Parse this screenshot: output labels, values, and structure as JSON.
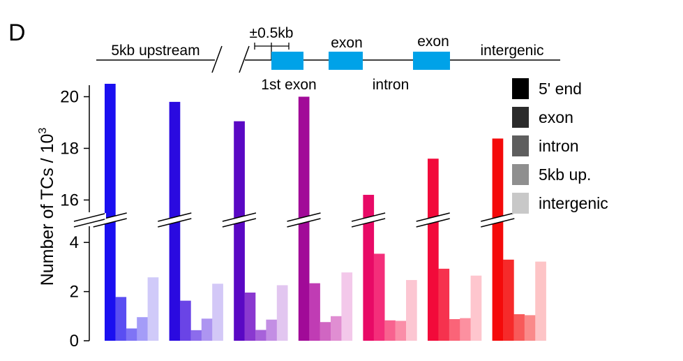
{
  "panel_label": "D",
  "gene_diagram": {
    "labels": {
      "upstream": "5kb upstream",
      "tss_window": "±0.5kb",
      "exon_a": "exon",
      "exon_b": "exon",
      "intergenic": "intergenic",
      "first_exon": "1st exon",
      "intron": "intron"
    },
    "exon_color": "#00a2e8"
  },
  "chart_data": {
    "type": "bar",
    "ylabel": "Number of TCs / 10",
    "ylabel_superscript": "3",
    "axis_break": true,
    "y_segments": [
      {
        "range": [
          0,
          5
        ],
        "ticks": [
          "0",
          "2",
          "4"
        ]
      },
      {
        "range": [
          15.2,
          20.5
        ],
        "ticks": [
          "16",
          "18",
          "20"
        ]
      }
    ],
    "series_order": [
      "5' end",
      "exon",
      "intron",
      "5kb up.",
      "intergenic"
    ],
    "legend": {
      "placement": "top-right",
      "entries": [
        {
          "label": "5' end",
          "color": "#000000"
        },
        {
          "label": "exon",
          "color": "#2b2b2b"
        },
        {
          "label": "intron",
          "color": "#5e5e5e"
        },
        {
          "label": "5kb up.",
          "color": "#8f8f8f"
        },
        {
          "label": "intergenic",
          "color": "#c8c8c8"
        }
      ]
    },
    "groups": [
      {
        "values": [
          20.5,
          1.78,
          0.5,
          0.96,
          2.58
        ],
        "colors": [
          "#1a0ff0",
          "#5a4ef2",
          "#7f74f5",
          "#a49cf8",
          "#d0caf9"
        ]
      },
      {
        "values": [
          19.8,
          1.63,
          0.43,
          0.9,
          2.32
        ],
        "colors": [
          "#2a0ae0",
          "#6a44e6",
          "#8c6cec",
          "#ad95f1",
          "#d3c8f7"
        ]
      },
      {
        "values": [
          19.05,
          1.96,
          0.44,
          0.86,
          2.26
        ],
        "colors": [
          "#5a08c4",
          "#8a38d0",
          "#a762da",
          "#c38ee4",
          "#e2c6f0"
        ]
      },
      {
        "values": [
          20.0,
          2.34,
          0.76,
          1.0,
          2.78
        ],
        "colors": [
          "#a10a98",
          "#c03cb4",
          "#d066c2",
          "#e08ed2",
          "#f3c8ea"
        ]
      },
      {
        "values": [
          16.2,
          3.54,
          0.83,
          0.81,
          2.47
        ],
        "colors": [
          "#e80a66",
          "#f42e7a",
          "#f8628f",
          "#fa8ea8",
          "#fcc6d2"
        ]
      },
      {
        "values": [
          17.6,
          2.93,
          0.88,
          0.92,
          2.65
        ],
        "colors": [
          "#f20a3a",
          "#f6324e",
          "#fa6478",
          "#fc90a0",
          "#fec6ce"
        ]
      },
      {
        "values": [
          18.38,
          3.3,
          1.08,
          1.04,
          3.22
        ],
        "colors": [
          "#f40a0a",
          "#f62a2a",
          "#f85a5a",
          "#fa8a8a",
          "#fdc4c6"
        ]
      }
    ]
  }
}
